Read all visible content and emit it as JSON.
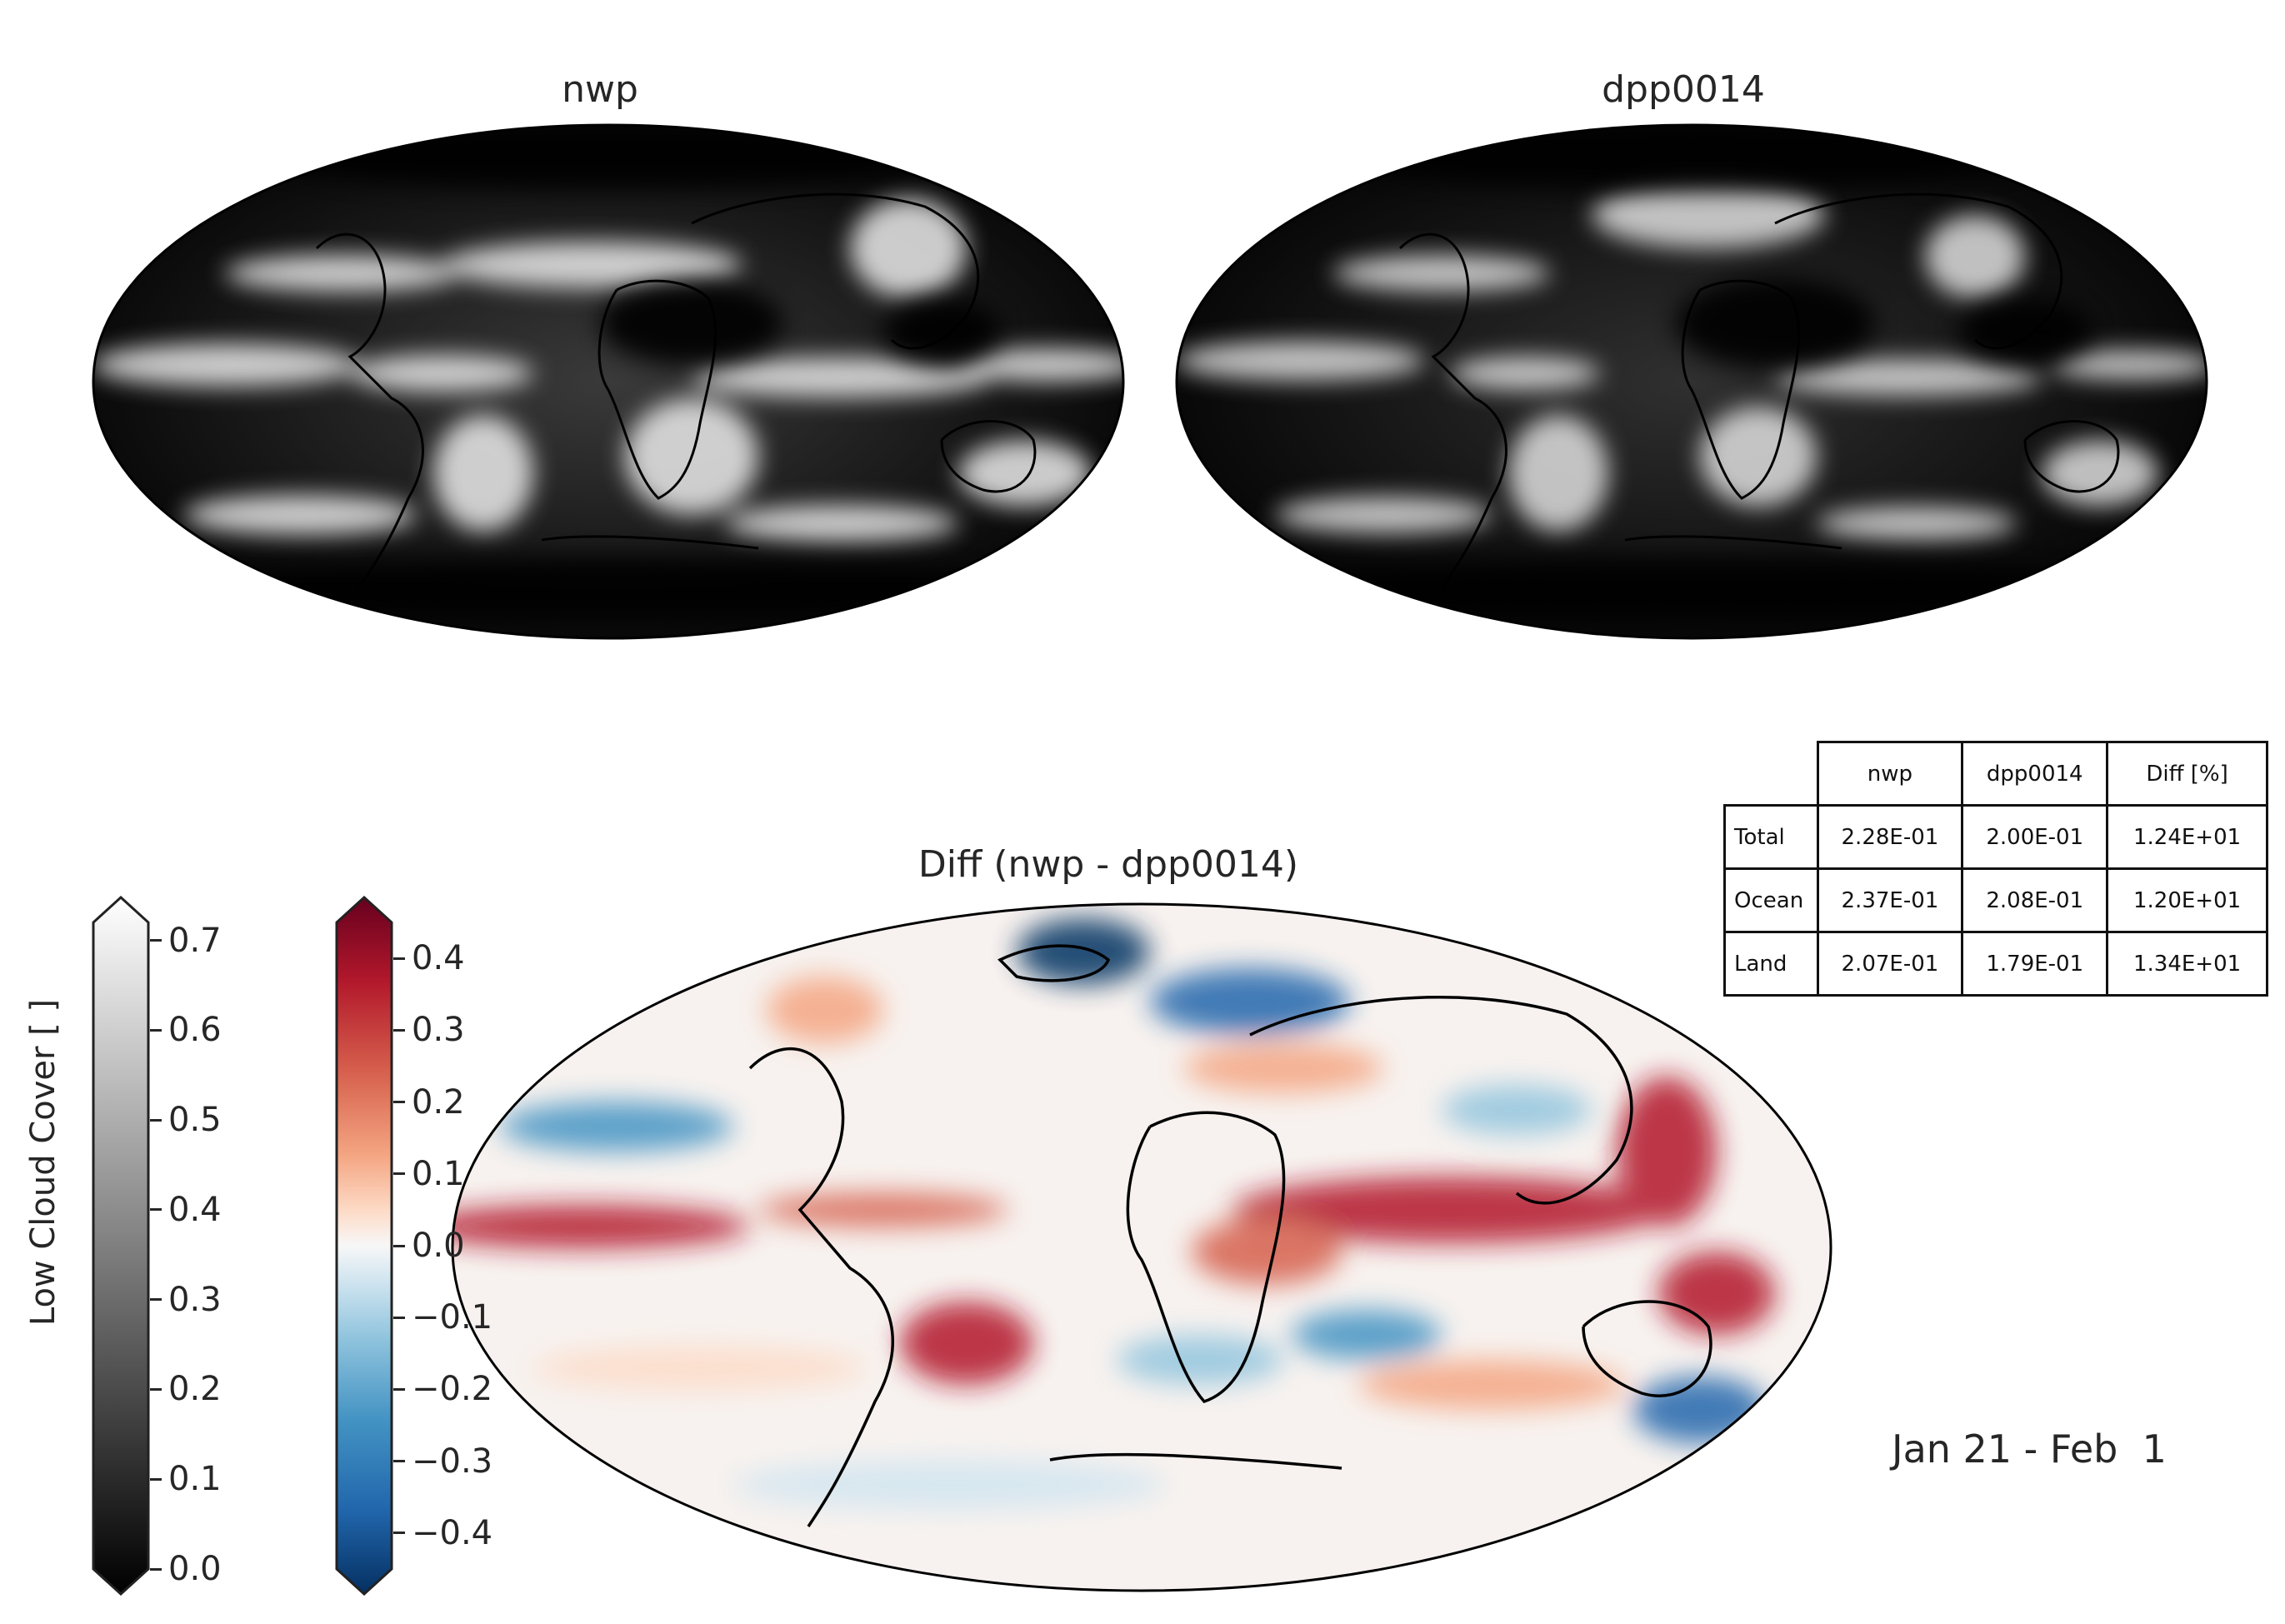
{
  "panels": {
    "left_title": "nwp",
    "right_title": "dpp0014",
    "diff_title": "Diff (nwp - dpp0014)"
  },
  "colorbars": {
    "gray": {
      "label": "Low Cloud Cover [ ]",
      "ticks": [
        "0.0",
        "0.1",
        "0.2",
        "0.3",
        "0.4",
        "0.5",
        "0.6",
        "0.7"
      ],
      "colormap": "Greys_r",
      "range": [
        0.0,
        0.72
      ]
    },
    "diverging": {
      "ticks": [
        "−0.4",
        "−0.3",
        "−0.2",
        "−0.1",
        "0.0",
        "0.1",
        "0.2",
        "0.3",
        "0.4"
      ],
      "colormap": "RdBu_r",
      "range": [
        -0.45,
        0.45
      ]
    }
  },
  "stats_table": {
    "columns": [
      "nwp",
      "dpp0014",
      "Diff [%]"
    ],
    "rows": [
      {
        "label": "Total",
        "values": [
          "2.28E-01",
          "2.00E-01",
          "1.24E+01"
        ]
      },
      {
        "label": "Ocean",
        "values": [
          "2.37E-01",
          "2.08E-01",
          "1.20E+01"
        ]
      },
      {
        "label": "Land",
        "values": [
          "2.07E-01",
          "1.79E-01",
          "1.34E+01"
        ]
      }
    ]
  },
  "date_range": "Jan 21 - Feb  1",
  "projection": "Mollweide",
  "colors": {
    "text": "#262626",
    "coast": "#000000",
    "red_max": "#67001f",
    "blue_min": "#053061"
  }
}
